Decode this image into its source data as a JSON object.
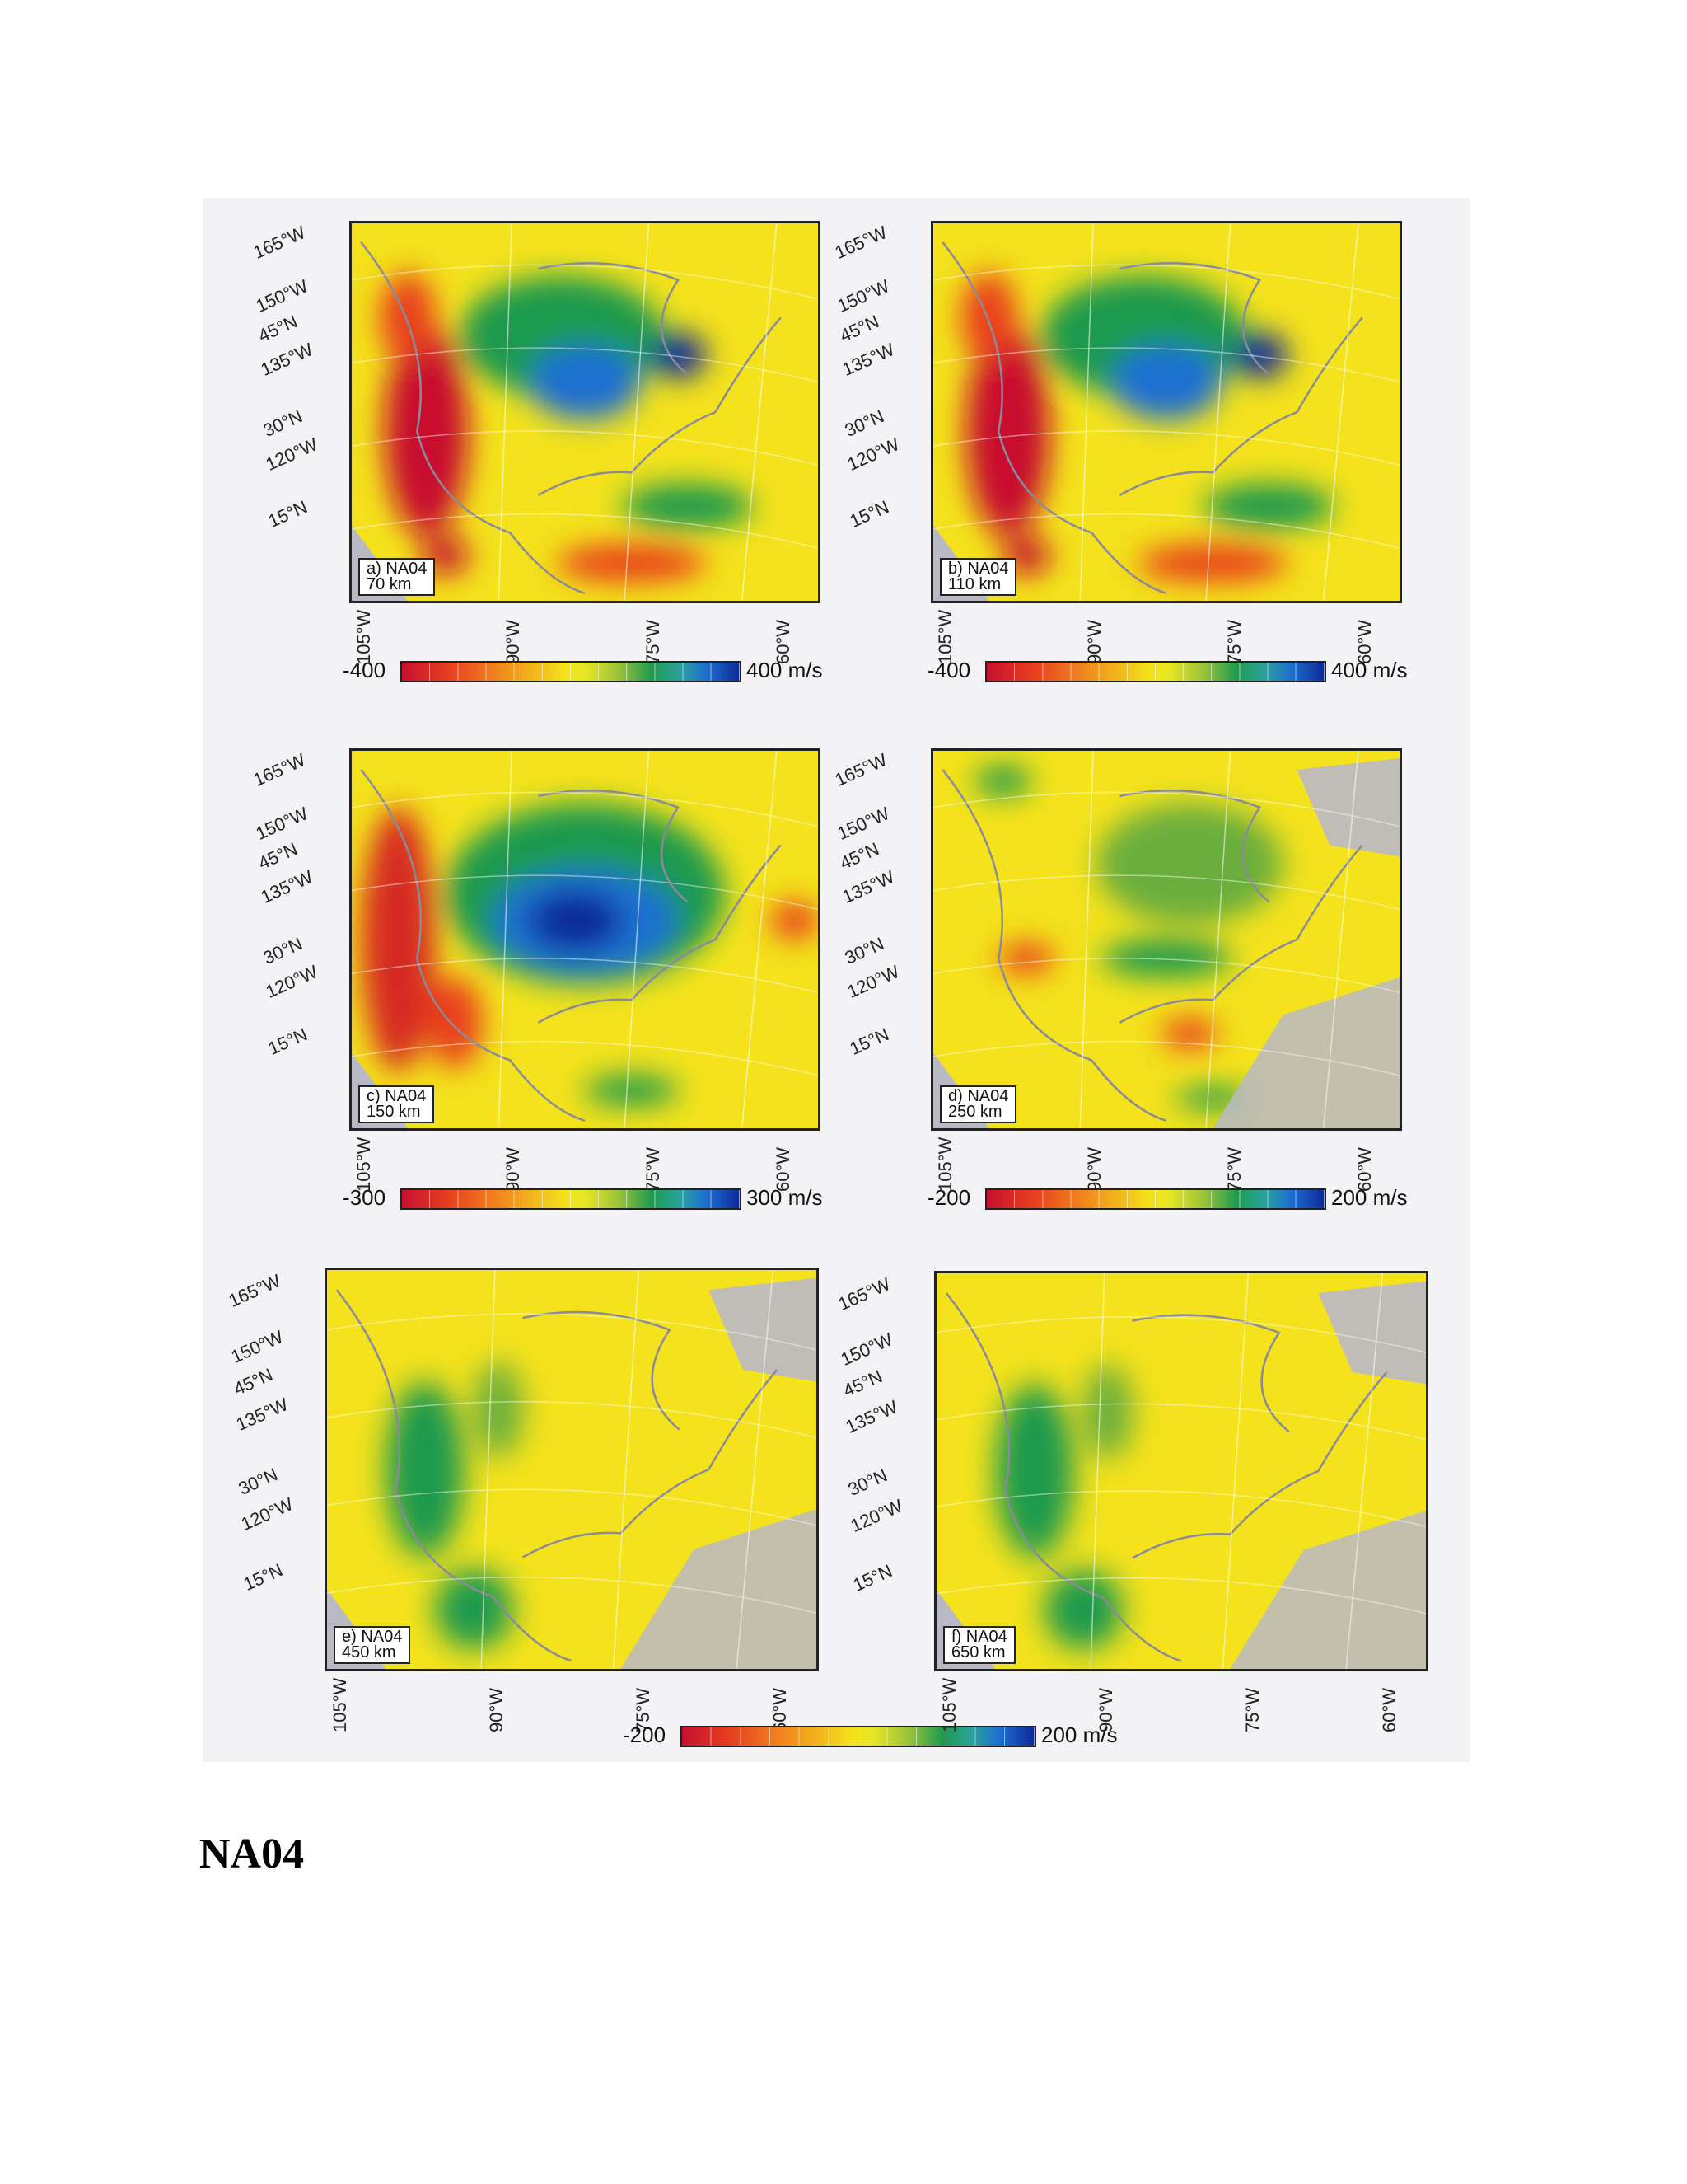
{
  "panels": [
    {
      "id": "a",
      "label": "a) NA04",
      "depth": "70 km",
      "dominant": "hot"
    },
    {
      "id": "b",
      "label": "b) NA04",
      "depth": "110 km",
      "dominant": "hot"
    },
    {
      "id": "c",
      "label": "c) NA04",
      "depth": "150 km",
      "dominant": "mid"
    },
    {
      "id": "d",
      "label": "d) NA04",
      "depth": "250 km",
      "dominant": "cool"
    },
    {
      "id": "e",
      "label": "e) NA04",
      "depth": "450 km",
      "dominant": "flat"
    },
    {
      "id": "f",
      "label": "f) NA04",
      "depth": "650 km",
      "dominant": "flat"
    }
  ],
  "lat_labels": [
    "165°W",
    "150°W",
    "45°N",
    "135°W",
    "30°N",
    "120°W",
    "15°N"
  ],
  "lon_labels": [
    "105°W",
    "90°W",
    "75°W",
    "60°W"
  ],
  "colorbars": [
    {
      "lo": "-400",
      "hi": "400 m/s"
    },
    {
      "lo": "-400",
      "hi": "400 m/s"
    },
    {
      "lo": "-300",
      "hi": "300 m/s"
    },
    {
      "lo": "-200",
      "hi": "200 m/s"
    },
    {
      "lo": "-200",
      "hi": "200 m/s"
    }
  ],
  "colors": {
    "slow": "#c8102e",
    "neutral": "#f3e21c",
    "fast": "#0d2a9a",
    "land_outline": "#8a8a9a",
    "no_data": "#b9b9c6"
  },
  "caption": "NA04"
}
